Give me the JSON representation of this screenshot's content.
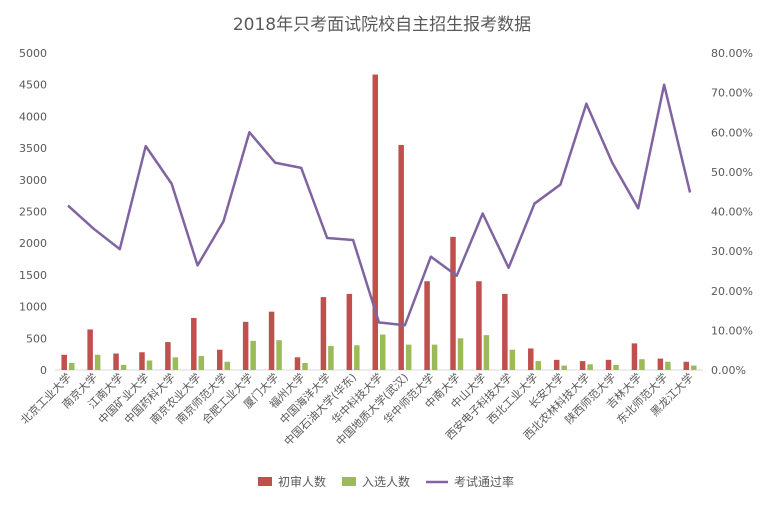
{
  "chart_data": {
    "type": "bar",
    "title": "2018年只考面试院校自主招生报考数据",
    "categories": [
      "北京工业大学",
      "南京大学",
      "江南大学",
      "中国矿业大学",
      "中国药科大学",
      "南京农业大学",
      "南京师范大学",
      "合肥工业大学",
      "厦门大学",
      "福州大学",
      "中国海洋大学",
      "中国石油大学(华东)",
      "华中科技大学",
      "中国地质大学(武汉)",
      "华中师范大学",
      "中南大学",
      "中山大学",
      "西安电子科技大学",
      "西北工业大学",
      "长安大学",
      "西北农林科技大学",
      "陕西师范大学",
      "吉林大学",
      "东北师范大学",
      "黑龙江大学"
    ],
    "series": [
      {
        "name": "初审人数",
        "axis": "left",
        "color": "#c0504d",
        "values": [
          240,
          640,
          260,
          280,
          440,
          820,
          320,
          760,
          920,
          200,
          1150,
          1200,
          4660,
          3550,
          1400,
          2100,
          1400,
          1200,
          340,
          160,
          140,
          160,
          420,
          180,
          130
        ]
      },
      {
        "name": "入选人数",
        "axis": "left",
        "color": "#9bbb59",
        "values": [
          110,
          240,
          80,
          150,
          200,
          220,
          130,
          460,
          470,
          110,
          380,
          390,
          560,
          400,
          400,
          500,
          550,
          320,
          140,
          70,
          90,
          80,
          170,
          130,
          70
        ]
      },
      {
        "name": "考试通过率",
        "axis": "right",
        "color": "#8064a2",
        "type": "line",
        "values": [
          41.5,
          35.6,
          30.5,
          56.5,
          47,
          26.4,
          37.5,
          60,
          52.3,
          51,
          33.3,
          32.8,
          12,
          11.3,
          28.6,
          23.8,
          39.5,
          25.8,
          42,
          46.8,
          67.2,
          52.3,
          40.8,
          72,
          44.8
        ]
      }
    ],
    "ylim_left": [
      0,
      5000
    ],
    "yticks_left": [
      "0",
      "500",
      "1000",
      "1500",
      "2000",
      "2500",
      "3000",
      "3500",
      "4000",
      "4500",
      "5000"
    ],
    "ylim_right": [
      0,
      80
    ],
    "yticks_right": [
      "0.00%",
      "10.00%",
      "20.00%",
      "30.00%",
      "40.00%",
      "50.00%",
      "60.00%",
      "70.00%",
      "80.00%"
    ],
    "grid": false,
    "legend_position": "bottom"
  }
}
